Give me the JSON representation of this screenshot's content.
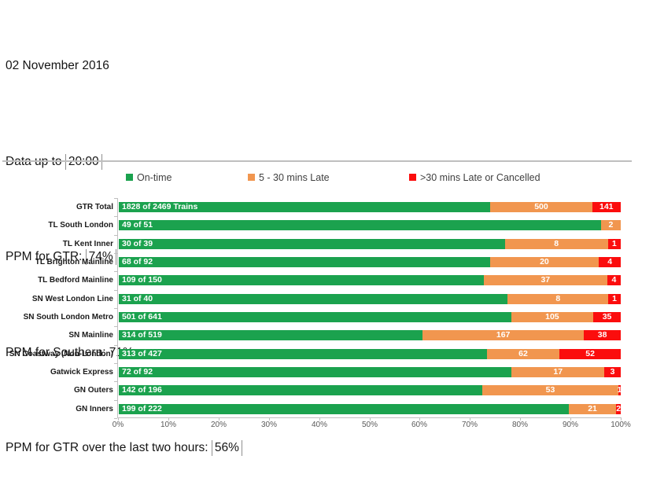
{
  "header": {
    "date_line": "02 November 2016",
    "data_up_to_label": "Data up to ",
    "data_up_to_value": "20:00",
    "ppm_gtr_label": "PPM for GTR: ",
    "ppm_gtr_value": "74%",
    "ppm_southern_line": "PPM for Southern: 71%",
    "ppm_gtr_2h_label": "PPM for GTR over the last two hours: ",
    "ppm_gtr_2h_value": "56%"
  },
  "chart_data": {
    "type": "bar",
    "variant": "100-percent-stacked-horizontal",
    "grid": false,
    "legend_position": "top",
    "legend": [
      {
        "label": "On-time",
        "color": "#1ba24e"
      },
      {
        "label": "5 - 30 mins Late",
        "color": "#f1964f"
      },
      {
        "label": ">30 mins Late or Cancelled",
        "color": "#fb0d0d"
      }
    ],
    "categories": [
      "GTR Total",
      "TL South London",
      "TL Kent Inner",
      "TL Brighton Mainline",
      "TL Bedford Mainline",
      "SN West London Line",
      "SN South London Metro",
      "SN Mainline",
      "SN Coastway (Non-London)",
      "Gatwick Express",
      "GN Outers",
      "GN Inners"
    ],
    "series": [
      {
        "name": "On-time",
        "values": [
          1828,
          49,
          30,
          68,
          109,
          31,
          501,
          314,
          313,
          72,
          142,
          199
        ]
      },
      {
        "name": "5 - 30 mins Late",
        "values": [
          500,
          2,
          8,
          20,
          37,
          8,
          105,
          167,
          62,
          17,
          53,
          21
        ]
      },
      {
        "name": ">30 mins Late or Cancelled",
        "values": [
          141,
          0,
          1,
          4,
          4,
          1,
          35,
          38,
          52,
          3,
          1,
          2
        ]
      }
    ],
    "totals": [
      2469,
      51,
      39,
      92,
      150,
      40,
      641,
      519,
      427,
      92,
      196,
      222
    ],
    "on_time_bar_labels": [
      "1828 of 2469 Trains",
      "49 of 51",
      "30 of 39",
      "68 of 92",
      "109 of 150",
      "31 of 40",
      "501 of 641",
      "314 of 519",
      "313 of 427",
      "72 of 92",
      "142 of 196",
      "199 of 222"
    ],
    "x_axis": {
      "min": 0,
      "max": 100,
      "tick_labels": [
        "0%",
        "10%",
        "20%",
        "30%",
        "40%",
        "50%",
        "60%",
        "70%",
        "80%",
        "90%",
        "100%"
      ]
    }
  }
}
